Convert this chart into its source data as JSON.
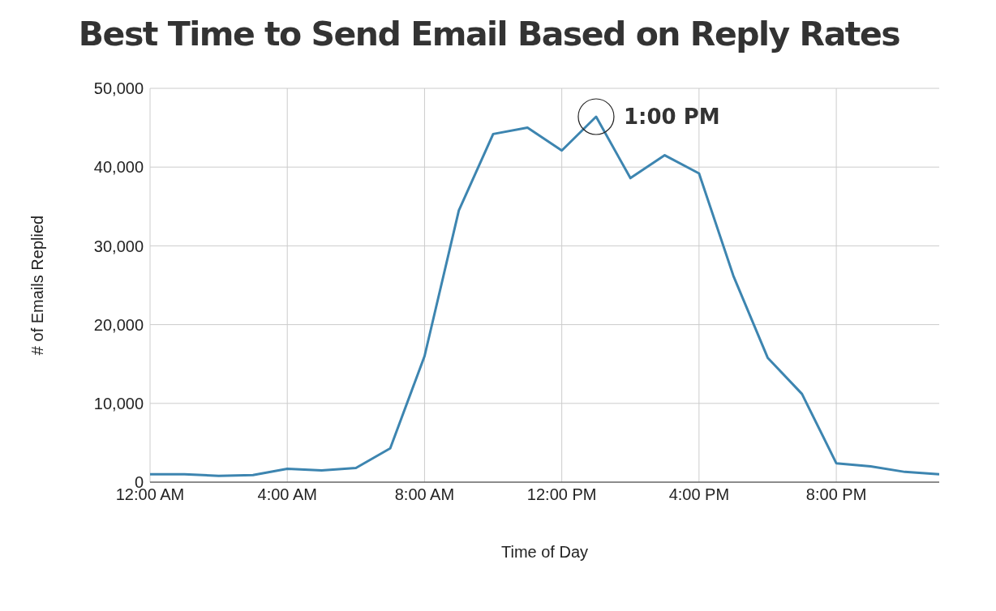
{
  "chart_data": {
    "type": "line",
    "title": "Best Time to Send Email Based on Reply Rates",
    "xlabel": "Time of Day",
    "ylabel": "# of Emails Replied",
    "x": [
      0,
      1,
      2,
      3,
      4,
      5,
      6,
      7,
      8,
      9,
      10,
      11,
      12,
      13,
      14,
      15,
      16,
      17,
      18,
      19,
      20,
      21,
      22,
      23
    ],
    "series": [
      {
        "color": "#3d85b0",
        "values": [
          1000,
          1000,
          800,
          900,
          1700,
          1500,
          1800,
          4300,
          16000,
          34500,
          44200,
          45000,
          42100,
          46400,
          38600,
          41500,
          39200,
          26200,
          15800,
          11200,
          2400,
          2000,
          1300,
          1000
        ]
      }
    ],
    "xlim": [
      0,
      23
    ],
    "xticks": [
      {
        "value": 0,
        "label": "12:00 AM"
      },
      {
        "value": 4,
        "label": "4:00 AM"
      },
      {
        "value": 8,
        "label": "8:00 AM"
      },
      {
        "value": 12,
        "label": "12:00 PM"
      },
      {
        "value": 16,
        "label": "4:00 PM"
      },
      {
        "value": 20,
        "label": "8:00 PM"
      }
    ],
    "ylim": [
      0,
      50000
    ],
    "yticks": [
      0,
      {
        "value": 10000,
        "label": "10,000"
      },
      {
        "value": 20000,
        "label": "20,000"
      },
      {
        "value": 30000,
        "label": "30,000"
      },
      {
        "value": 40000,
        "label": "40,000"
      },
      {
        "value": 50000,
        "label": "50,000"
      }
    ],
    "grid": true,
    "marker": "none",
    "line_style": "solid",
    "legend": false,
    "annotations": [
      {
        "text": "1:00 PM",
        "x": 13,
        "y": 46400
      }
    ]
  }
}
